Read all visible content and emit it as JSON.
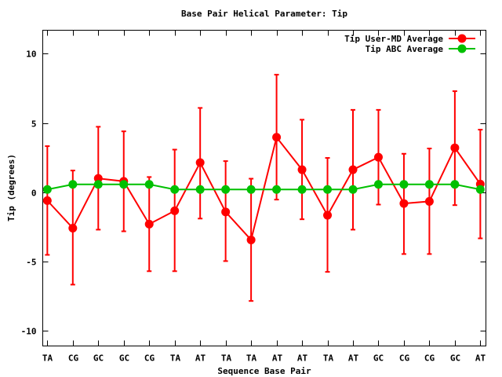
{
  "chart_data": {
    "type": "line",
    "title": "Base Pair Helical Parameter: Tip",
    "xlabel": "Sequence Base Pair",
    "ylabel": "Tip (degrees)",
    "categories": [
      "TA",
      "CG",
      "GC",
      "GC",
      "CG",
      "TA",
      "AT",
      "TA",
      "TA",
      "AT",
      "AT",
      "TA",
      "AT",
      "GC",
      "CG",
      "CG",
      "GC",
      "AT"
    ],
    "ylim": [
      -11.1,
      11.7
    ],
    "yticks": [
      -10,
      -5,
      0,
      5,
      10
    ],
    "grid": false,
    "legend_position": "top-right",
    "series": [
      {
        "name": "Tip User-MD Average",
        "color": "#ff0000",
        "values": [
          -0.6,
          -2.59,
          1.0,
          0.79,
          -2.3,
          -1.34,
          2.14,
          -1.42,
          -3.44,
          3.97,
          1.63,
          -1.66,
          1.63,
          2.53,
          -0.81,
          -0.66,
          3.21,
          0.59
        ],
        "error_high": [
          3.33,
          1.57,
          4.73,
          4.4,
          1.1,
          3.08,
          6.09,
          2.25,
          0.98,
          8.49,
          5.24,
          2.48,
          5.95,
          5.95,
          2.78,
          3.16,
          7.3,
          4.52
        ],
        "error_low": [
          -4.52,
          -6.67,
          -2.7,
          -2.82,
          -5.7,
          -5.7,
          -1.9,
          -4.97,
          -7.85,
          -0.53,
          -1.95,
          -5.75,
          -2.7,
          -0.89,
          -4.46,
          -4.46,
          -0.93,
          -3.33
        ]
      },
      {
        "name": "Tip ABC Average",
        "color": "#00c000",
        "values": [
          0.2,
          0.57,
          0.57,
          0.57,
          0.57,
          0.2,
          0.2,
          0.2,
          0.2,
          0.2,
          0.2,
          0.2,
          0.2,
          0.57,
          0.57,
          0.57,
          0.57,
          0.2
        ]
      }
    ]
  }
}
